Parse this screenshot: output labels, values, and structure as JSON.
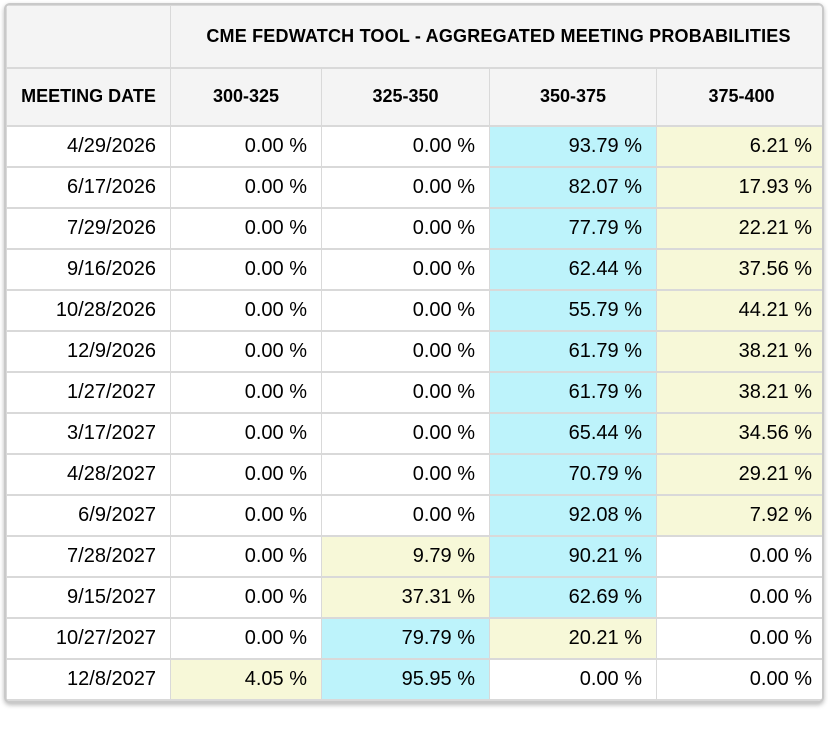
{
  "title": "CME FEDWATCH TOOL - AGGREGATED MEETING PROBABILITIES",
  "columns": [
    "MEETING DATE",
    "300-325",
    "325-350",
    "350-375",
    "375-400"
  ],
  "colors": {
    "highest_cell_bg": "#BDF3FB",
    "second_cell_bg": "#F7F8D8",
    "header_bg": "#F4F4F4",
    "grid_border": "#D9D9D9",
    "text": "#000000"
  },
  "chart_data": {
    "type": "table",
    "title": "CME FEDWATCH TOOL - AGGREGATED MEETING PROBABILITIES",
    "columns": [
      "MEETING DATE",
      "300-325",
      "325-350",
      "350-375",
      "375-400"
    ],
    "unit": "%",
    "highlight_legend": {
      "cyan": "highest probability in row",
      "yellow": "second-highest non-zero probability in row"
    },
    "rows": [
      {
        "date": "4/29/2026",
        "values": [
          "0.00 %",
          "0.00 %",
          "93.79 %",
          "6.21 %"
        ],
        "highlights": [
          "none",
          "none",
          "cyan",
          "yellow"
        ]
      },
      {
        "date": "6/17/2026",
        "values": [
          "0.00 %",
          "0.00 %",
          "82.07 %",
          "17.93 %"
        ],
        "highlights": [
          "none",
          "none",
          "cyan",
          "yellow"
        ]
      },
      {
        "date": "7/29/2026",
        "values": [
          "0.00 %",
          "0.00 %",
          "77.79 %",
          "22.21 %"
        ],
        "highlights": [
          "none",
          "none",
          "cyan",
          "yellow"
        ]
      },
      {
        "date": "9/16/2026",
        "values": [
          "0.00 %",
          "0.00 %",
          "62.44 %",
          "37.56 %"
        ],
        "highlights": [
          "none",
          "none",
          "cyan",
          "yellow"
        ]
      },
      {
        "date": "10/28/2026",
        "values": [
          "0.00 %",
          "0.00 %",
          "55.79 %",
          "44.21 %"
        ],
        "highlights": [
          "none",
          "none",
          "cyan",
          "yellow"
        ]
      },
      {
        "date": "12/9/2026",
        "values": [
          "0.00 %",
          "0.00 %",
          "61.79 %",
          "38.21 %"
        ],
        "highlights": [
          "none",
          "none",
          "cyan",
          "yellow"
        ]
      },
      {
        "date": "1/27/2027",
        "values": [
          "0.00 %",
          "0.00 %",
          "61.79 %",
          "38.21 %"
        ],
        "highlights": [
          "none",
          "none",
          "cyan",
          "yellow"
        ]
      },
      {
        "date": "3/17/2027",
        "values": [
          "0.00 %",
          "0.00 %",
          "65.44 %",
          "34.56 %"
        ],
        "highlights": [
          "none",
          "none",
          "cyan",
          "yellow"
        ]
      },
      {
        "date": "4/28/2027",
        "values": [
          "0.00 %",
          "0.00 %",
          "70.79 %",
          "29.21 %"
        ],
        "highlights": [
          "none",
          "none",
          "cyan",
          "yellow"
        ]
      },
      {
        "date": "6/9/2027",
        "values": [
          "0.00 %",
          "0.00 %",
          "92.08 %",
          "7.92 %"
        ],
        "highlights": [
          "none",
          "none",
          "cyan",
          "yellow"
        ]
      },
      {
        "date": "7/28/2027",
        "values": [
          "0.00 %",
          "9.79 %",
          "90.21 %",
          "0.00 %"
        ],
        "highlights": [
          "none",
          "yellow",
          "cyan",
          "none"
        ]
      },
      {
        "date": "9/15/2027",
        "values": [
          "0.00 %",
          "37.31 %",
          "62.69 %",
          "0.00 %"
        ],
        "highlights": [
          "none",
          "yellow",
          "cyan",
          "none"
        ]
      },
      {
        "date": "10/27/2027",
        "values": [
          "0.00 %",
          "79.79 %",
          "20.21 %",
          "0.00 %"
        ],
        "highlights": [
          "none",
          "cyan",
          "yellow",
          "none"
        ]
      },
      {
        "date": "12/8/2027",
        "values": [
          "4.05 %",
          "95.95 %",
          "0.00 %",
          "0.00 %"
        ],
        "highlights": [
          "yellow",
          "cyan",
          "none",
          "none"
        ]
      }
    ]
  }
}
